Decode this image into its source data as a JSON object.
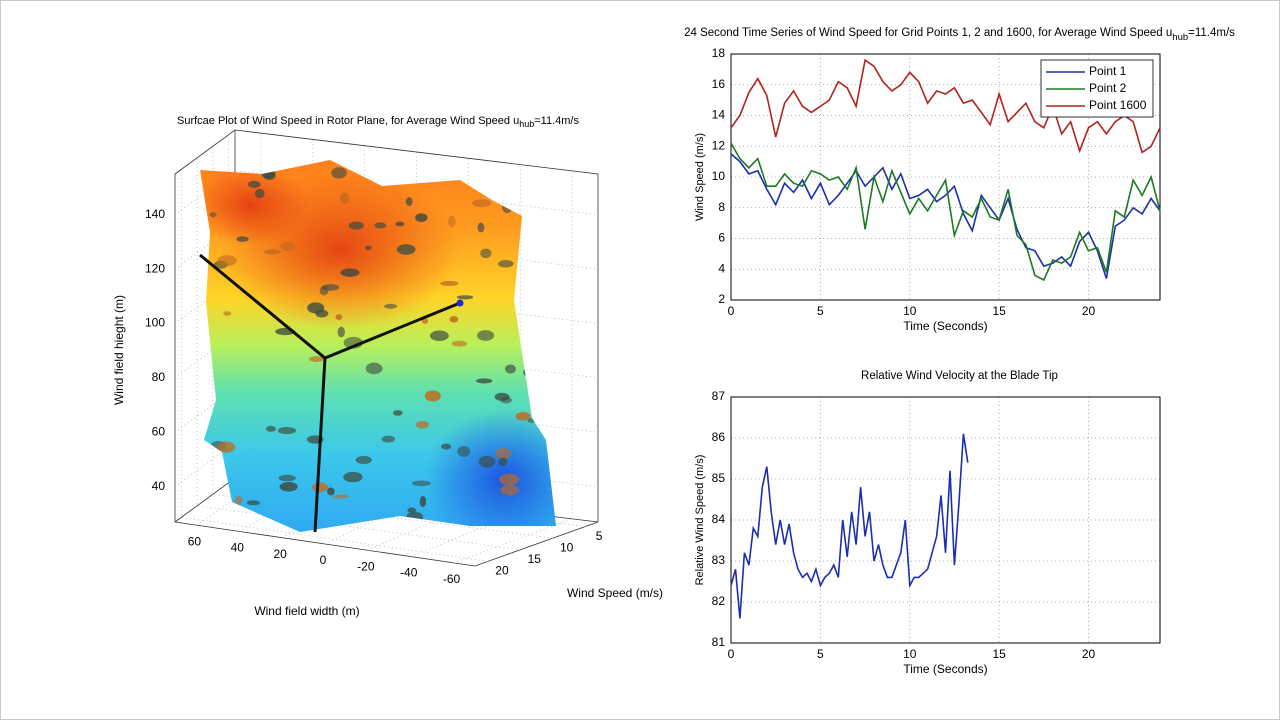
{
  "chart_data": [
    {
      "type": "surface",
      "title": "Surfcae Plot of Wind Speed in Rotor Plane, for Average Wind Speed u",
      "title_subscript": "hub",
      "title_suffix": "=11.4m/s",
      "xlabel": "Wind field width (m)",
      "ylabel": "Wind Speed (m/s)",
      "zlabel": "Wind field hieght (m)",
      "xlim": [
        70,
        -70
      ],
      "xticks": [
        60,
        40,
        20,
        0,
        -20,
        -40,
        -60
      ],
      "ylim": [
        22,
        3
      ],
      "yticks": [
        20,
        15,
        10,
        5
      ],
      "zlim": [
        27,
        155
      ],
      "zticks": [
        40,
        60,
        80,
        100,
        120,
        140
      ],
      "grid": true
    },
    {
      "type": "line",
      "title": "24 Second Time Series of Wind Speed for Grid Points 1, 2 and 1600, for Average Wind Speed u",
      "title_subscript": "hub",
      "title_suffix": "=11.4m/s",
      "xlabel": "Time (Seconds)",
      "ylabel": "Wind Speed (m/s)",
      "xlim": [
        0,
        24
      ],
      "xticks": [
        0,
        5,
        10,
        15,
        20
      ],
      "ylim": [
        2,
        18
      ],
      "yticks": [
        2,
        4,
        6,
        8,
        10,
        12,
        14,
        16,
        18
      ],
      "grid": true,
      "legend": "northeast",
      "x": [
        0,
        0.5,
        1,
        1.5,
        2,
        2.5,
        3,
        3.5,
        4,
        4.5,
        5,
        5.5,
        6,
        6.5,
        7,
        7.5,
        8,
        8.5,
        9,
        9.5,
        10,
        10.5,
        11,
        11.5,
        12,
        12.5,
        13,
        13.5,
        14,
        14.5,
        15,
        15.5,
        16,
        16.5,
        17,
        17.5,
        18,
        18.5,
        19,
        19.5,
        20,
        20.5,
        21,
        21.5,
        22,
        22.5,
        23,
        23.5,
        24
      ],
      "series": [
        {
          "name": "Point 1",
          "color": "#1b2fb0",
          "values": [
            11.5,
            11,
            10.2,
            10.4,
            9.2,
            8.2,
            9.6,
            9,
            9.8,
            8.6,
            9.6,
            8.2,
            8.8,
            9.6,
            10.4,
            9.4,
            10,
            10.6,
            9.2,
            10.2,
            8.6,
            8.8,
            9.2,
            8.4,
            8.8,
            9.4,
            7.6,
            6.5,
            8.8,
            8,
            7.2,
            8.6,
            6.6,
            5.4,
            5.2,
            4.2,
            4.4,
            4.8,
            4.2,
            5.8,
            6.4,
            5.2,
            3.4,
            6.8,
            7.2,
            8,
            7.6,
            8.6,
            7.8
          ]
        },
        {
          "name": "Point 2",
          "color": "#1d7a24",
          "values": [
            12.2,
            11.2,
            10.6,
            11.2,
            9.4,
            9.4,
            10.2,
            9.6,
            9.4,
            10.4,
            10.2,
            9.8,
            10,
            9.2,
            10.6,
            6.6,
            10,
            8.4,
            10.4,
            9,
            7.6,
            8.6,
            7.8,
            8.8,
            9.8,
            6.2,
            7.8,
            7.4,
            8.6,
            7.4,
            7.2,
            9.2,
            6.2,
            5.6,
            3.6,
            3.3,
            4.6,
            4.4,
            4.8,
            6.4,
            5.2,
            5.4,
            3.8,
            7.8,
            7.4,
            9.8,
            8.8,
            10,
            7.8
          ]
        },
        {
          "name": "Point 1600",
          "color": "#b3231e",
          "values": [
            13.2,
            14,
            15.5,
            16.4,
            15.3,
            12.6,
            14.8,
            15.6,
            14.6,
            14.2,
            14.6,
            15,
            16.2,
            15.8,
            14.6,
            17.6,
            17.2,
            16.2,
            15.6,
            16,
            16.8,
            16.2,
            14.8,
            15.6,
            15.4,
            15.8,
            14.8,
            15,
            14.2,
            13.4,
            15.4,
            13.6,
            14.2,
            14.8,
            13.6,
            13.2,
            14.6,
            12.8,
            13.6,
            11.7,
            13.2,
            13.6,
            12.8,
            13.6,
            14,
            13.6,
            11.6,
            12,
            13.2
          ]
        }
      ]
    },
    {
      "type": "line",
      "title": "Relative Wind Velocity at the Blade Tip",
      "xlabel": "Time (Seconds)",
      "ylabel": "Relative Wind Speed (m/s)",
      "xlim": [
        0,
        24
      ],
      "xticks": [
        0,
        5,
        10,
        15,
        20
      ],
      "ylim": [
        81,
        87
      ],
      "yticks": [
        81,
        82,
        83,
        84,
        85,
        86,
        87
      ],
      "grid": true,
      "x": [
        0,
        0.25,
        0.5,
        0.75,
        1,
        1.25,
        1.5,
        1.75,
        2,
        2.25,
        2.5,
        2.75,
        3,
        3.25,
        3.5,
        3.75,
        4,
        4.25,
        4.5,
        4.75,
        5,
        5.25,
        5.5,
        5.75,
        6,
        6.25,
        6.5,
        6.75,
        7,
        7.25,
        7.5,
        7.75,
        8,
        8.25,
        8.5,
        8.75,
        9,
        9.25,
        9.5,
        9.75,
        10,
        10.25,
        10.5,
        10.75,
        11,
        11.25,
        11.5,
        11.75,
        12,
        12.25,
        12.5,
        12.75,
        13,
        13.25
      ],
      "series": [
        {
          "color": "#1b2fb0",
          "values": [
            82.4,
            82.8,
            81.6,
            83.2,
            82.9,
            83.8,
            83.6,
            84.8,
            85.3,
            84.2,
            83.4,
            84,
            83.4,
            83.9,
            83.2,
            82.8,
            82.6,
            82.7,
            82.5,
            82.8,
            82.4,
            82.6,
            82.7,
            82.9,
            82.6,
            84,
            83.1,
            84.2,
            83.4,
            84.8,
            83.6,
            84.2,
            83,
            83.4,
            82.9,
            82.6,
            82.6,
            82.9,
            83.2,
            84,
            82.4,
            82.6,
            82.6,
            82.7,
            82.8,
            83.2,
            83.6,
            84.6,
            83.2,
            85.2,
            82.9,
            84.4,
            86.1,
            85.4
          ]
        }
      ]
    }
  ]
}
